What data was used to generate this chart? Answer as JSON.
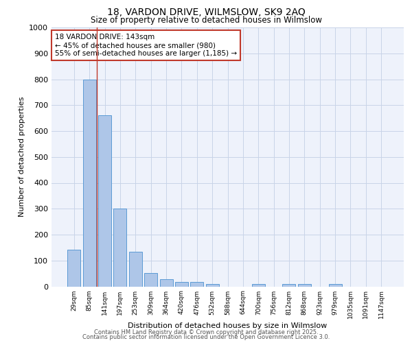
{
  "title1": "18, VARDON DRIVE, WILMSLOW, SK9 2AQ",
  "title2": "Size of property relative to detached houses in Wilmslow",
  "xlabel": "Distribution of detached houses by size in Wilmslow",
  "ylabel": "Number of detached properties",
  "bar_labels": [
    "29sqm",
    "85sqm",
    "141sqm",
    "197sqm",
    "253sqm",
    "309sqm",
    "364sqm",
    "420sqm",
    "476sqm",
    "532sqm",
    "588sqm",
    "644sqm",
    "700sqm",
    "756sqm",
    "812sqm",
    "868sqm",
    "923sqm",
    "979sqm",
    "1035sqm",
    "1091sqm",
    "1147sqm"
  ],
  "bar_values": [
    143,
    800,
    660,
    300,
    135,
    52,
    28,
    18,
    18,
    10,
    0,
    0,
    10,
    0,
    10,
    10,
    0,
    10,
    0,
    0,
    0
  ],
  "bar_color": "#aec6e8",
  "bar_edge_color": "#5b9bd5",
  "ylim": [
    0,
    1000
  ],
  "yticks": [
    0,
    100,
    200,
    300,
    400,
    500,
    600,
    700,
    800,
    900,
    1000
  ],
  "vline_x_index": 2,
  "vline_color": "#c0392b",
  "annotation_text": "18 VARDON DRIVE: 143sqm\n← 45% of detached houses are smaller (980)\n55% of semi-detached houses are larger (1,185) →",
  "annotation_box_color": "#ffffff",
  "annotation_box_edge": "#c0392b",
  "footer1": "Contains HM Land Registry data © Crown copyright and database right 2025.",
  "footer2": "Contains public sector information licensed under the Open Government Licence 3.0.",
  "bg_color": "#eef2fb",
  "grid_color": "#c8d4e8"
}
